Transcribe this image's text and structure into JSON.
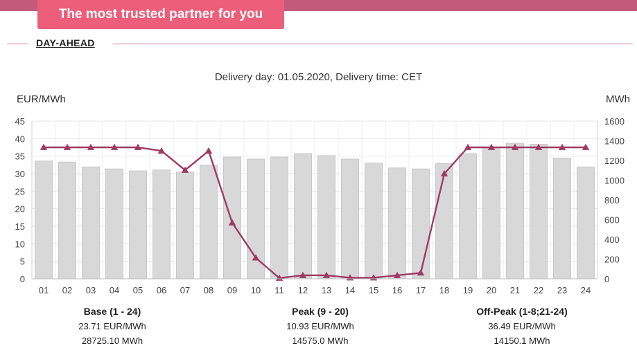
{
  "banner": {
    "tagline": "The most trusted partner for you"
  },
  "section": {
    "title": "DAY-AHEAD"
  },
  "chart_data": {
    "type": "bar+line",
    "title": "Delivery day: 01.05.2020, Delivery time: CET",
    "y_left_label": "EUR/MWh",
    "y_right_label": "MWh",
    "y_left_range": [
      0,
      45
    ],
    "y_right_range": [
      0,
      1600
    ],
    "y_left_ticks": [
      0,
      5,
      10,
      15,
      20,
      25,
      30,
      35,
      40,
      45
    ],
    "y_right_ticks": [
      0,
      200,
      400,
      600,
      800,
      1000,
      1200,
      1400,
      1600
    ],
    "categories": [
      "01",
      "02",
      "03",
      "04",
      "05",
      "06",
      "07",
      "08",
      "09",
      "10",
      "11",
      "12",
      "13",
      "14",
      "15",
      "16",
      "17",
      "18",
      "19",
      "20",
      "21",
      "22",
      "23",
      "24"
    ],
    "grid": true,
    "series": [
      {
        "axis": "right",
        "kind": "bar",
        "color": "#d8d8d8",
        "values": [
          1195,
          1185,
          1135,
          1115,
          1095,
          1105,
          1085,
          1155,
          1235,
          1215,
          1235,
          1270,
          1250,
          1215,
          1175,
          1125,
          1115,
          1170,
          1270,
          1335,
          1375,
          1365,
          1225,
          1135
        ]
      },
      {
        "axis": "left",
        "kind": "line",
        "color": "#9e3a62",
        "marker": "triangle",
        "values": [
          37.5,
          37.5,
          37.5,
          37.5,
          37.5,
          36.5,
          31.0,
          36.5,
          16.0,
          6.0,
          0.2,
          1.0,
          1.0,
          0.3,
          0.3,
          1.0,
          1.7,
          30.0,
          37.5,
          37.5,
          37.5,
          37.5,
          37.5,
          37.5
        ]
      }
    ]
  },
  "summaries": [
    {
      "title": "Base (1 - 24)",
      "price": "23.71 EUR/MWh",
      "volume": "28725.10 MWh"
    },
    {
      "title": "Peak (9 - 20)",
      "price": "10.93 EUR/MWh",
      "volume": "14575.0 MWh"
    },
    {
      "title": "Off-Peak (1-8;21-24)",
      "price": "36.49 EUR/MWh",
      "volume": "14150.1 MWh"
    }
  ]
}
